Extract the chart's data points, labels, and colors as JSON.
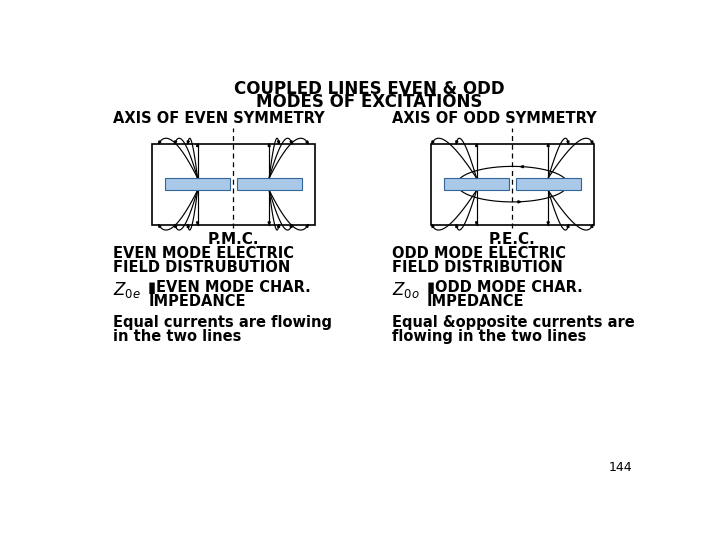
{
  "title_line1": "COUPLED LINES EVEN & ODD",
  "title_line2": "MODES OF EXCITATIONS",
  "left_axis_label": "AXIS OF EVEN SYMMETRY",
  "right_axis_label": "AXIS OF ODD SYMMETRY",
  "left_bottom_label": "P.M.C.",
  "right_bottom_label": "P.E.C.",
  "left_field_label1": "EVEN MODE ELECTRIC",
  "left_field_label2": "FIELD DISTRUBUTION",
  "right_field_label1": "ODD MODE ELECTRIC",
  "right_field_label2": "FIELD DISTRIBUTION",
  "left_imp1": "▮EVEN MODE CHAR.",
  "left_imp2": "IMPEDANCE",
  "right_imp1": "▮ODD MODE CHAR.",
  "right_imp2": "IMPEDANCE",
  "left_current1": "Equal currents are flowing",
  "left_current2": "in the two lines",
  "right_current1": "Equal &opposite currents are",
  "right_current2": "flowing in the two lines",
  "page_num": "144",
  "strip_color": "#aac8e8",
  "bg_color": "#ffffff"
}
